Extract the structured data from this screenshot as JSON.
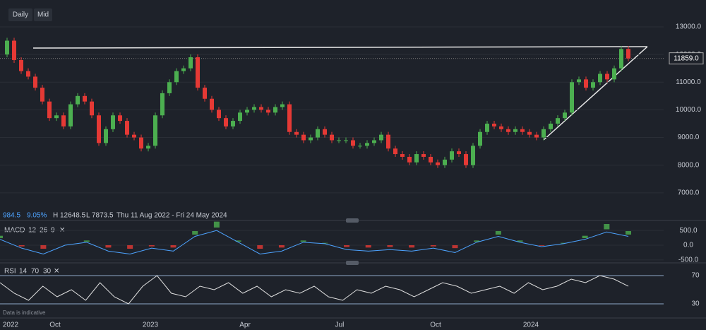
{
  "toolbar": {
    "interval": "Daily",
    "price_type": "Mid"
  },
  "info": {
    "change": "984.5",
    "change_pct": "9.05%",
    "high": "H 12648.5",
    "low": "L 7873.5",
    "range": "Thu 11 Aug 2022 - Fri 24 May 2024"
  },
  "price": {
    "closes": [
      12000,
      12500,
      11800,
      11400,
      11200,
      10800,
      10300,
      9700,
      9800,
      9400,
      10200,
      10500,
      10300,
      9800,
      8800,
      9300,
      9800,
      9600,
      9100,
      9000,
      8600,
      8700,
      9800,
      10600,
      11000,
      11400,
      11500,
      11900,
      10800,
      10400,
      10000,
      9700,
      9400,
      9600,
      9900,
      10000,
      10100,
      10000,
      9900,
      10100,
      10200,
      9200,
      9100,
      8900,
      9000,
      9300,
      9100,
      8900,
      8900,
      8900,
      8700,
      8700,
      8800,
      8900,
      9100,
      8600,
      8400,
      8300,
      8100,
      8400,
      8300,
      8100,
      8000,
      8200,
      8500,
      8400,
      8000,
      8700,
      9200,
      9500,
      9400,
      9300,
      9200,
      9300,
      9200,
      9100,
      9000,
      9300,
      9500,
      9700,
      9900,
      11000,
      11100,
      10800,
      11000,
      11300,
      11100,
      11500,
      12200,
      11859
    ],
    "ylim": [
      6000,
      13500
    ],
    "yticks": [
      {
        "value": 13000,
        "label": "13000.0"
      },
      {
        "value": 12000,
        "label": "12000.0"
      },
      {
        "value": 11000,
        "label": "11000.0"
      },
      {
        "value": 10000,
        "label": "10000.0"
      },
      {
        "value": 9000,
        "label": "9000.0"
      },
      {
        "value": 8000,
        "label": "8000.0"
      },
      {
        "value": 7000,
        "label": "7000.0"
      }
    ],
    "current": {
      "value": 11859,
      "label": "11859.0"
    }
  },
  "macd": {
    "name": "MACD",
    "params": [
      12,
      26,
      9
    ],
    "values": [
      200,
      -100,
      -300,
      0,
      100,
      -200,
      -300,
      -100,
      -200,
      300,
      500,
      100,
      -300,
      -200,
      100,
      50,
      -150,
      -200,
      -150,
      -200,
      -100,
      -250,
      100,
      300,
      100,
      -50,
      50,
      200,
      450,
      300
    ],
    "ylim": [
      -600,
      600
    ],
    "yticks": [
      {
        "value": 500,
        "label": "500.0"
      },
      {
        "value": 0,
        "label": "0.0"
      },
      {
        "value": -500,
        "label": "-500.0"
      }
    ]
  },
  "rsi": {
    "name": "RSI",
    "params": [
      14,
      70,
      30
    ],
    "values": [
      60,
      45,
      35,
      55,
      40,
      50,
      35,
      60,
      40,
      30,
      55,
      70,
      45,
      40,
      55,
      50,
      60,
      45,
      55,
      40,
      50,
      45,
      55,
      40,
      35,
      50,
      45,
      55,
      50,
      40,
      50,
      60,
      55,
      45,
      50,
      55,
      45,
      60,
      50,
      55,
      65,
      60,
      70,
      65,
      55
    ],
    "ylim": [
      20,
      80
    ],
    "yticks": [
      70,
      30
    ]
  },
  "x_axis": [
    "2022",
    "Oct",
    "2023",
    "Apr",
    "Jul",
    "Oct",
    "2024"
  ],
  "disclaimer": "Data is indicative"
}
